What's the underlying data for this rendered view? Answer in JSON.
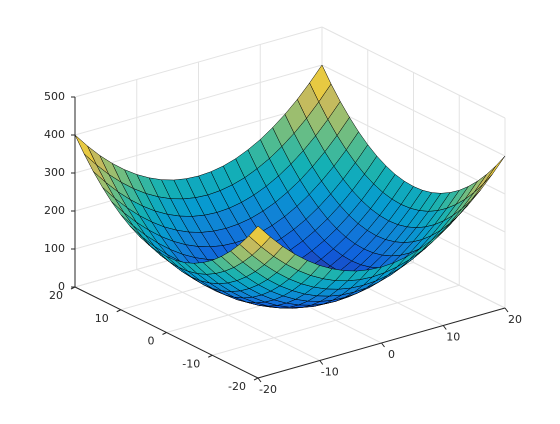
{
  "chart_data": {
    "type": "surface",
    "x": [
      -20,
      -18,
      -16,
      -14,
      -12,
      -10,
      -8,
      -6,
      -4,
      -2,
      0,
      2,
      4,
      6,
      8,
      10,
      12,
      14,
      16,
      18,
      20
    ],
    "y": [
      -20,
      -18,
      -16,
      -14,
      -12,
      -10,
      -8,
      -6,
      -4,
      -2,
      0,
      2,
      4,
      6,
      8,
      10,
      12,
      14,
      16,
      18,
      20
    ],
    "z": [
      [
        400,
        362,
        328,
        298,
        272,
        250,
        232,
        218,
        208,
        202,
        200,
        202,
        208,
        218,
        232,
        250,
        272,
        298,
        328,
        362,
        400
      ],
      [
        362,
        324,
        290,
        260,
        234,
        212,
        194,
        180,
        170,
        164,
        162,
        164,
        170,
        180,
        194,
        212,
        234,
        260,
        290,
        324,
        362
      ],
      [
        328,
        290,
        256,
        226,
        200,
        178,
        160,
        146,
        136,
        130,
        128,
        130,
        136,
        146,
        160,
        178,
        200,
        226,
        256,
        290,
        328
      ],
      [
        298,
        260,
        226,
        196,
        170,
        148,
        130,
        116,
        106,
        100,
        98,
        100,
        106,
        116,
        130,
        148,
        170,
        196,
        226,
        260,
        298
      ],
      [
        272,
        234,
        200,
        170,
        144,
        122,
        104,
        90,
        80,
        74,
        72,
        74,
        80,
        90,
        104,
        122,
        144,
        170,
        200,
        234,
        272
      ],
      [
        250,
        212,
        178,
        148,
        122,
        100,
        82,
        68,
        58,
        52,
        50,
        52,
        58,
        68,
        82,
        100,
        122,
        148,
        178,
        212,
        250
      ],
      [
        232,
        194,
        160,
        130,
        104,
        82,
        64,
        50,
        40,
        34,
        32,
        34,
        40,
        50,
        64,
        82,
        104,
        130,
        160,
        194,
        232
      ],
      [
        218,
        180,
        146,
        116,
        90,
        68,
        50,
        36,
        26,
        20,
        18,
        20,
        26,
        36,
        50,
        68,
        90,
        116,
        146,
        180,
        218
      ],
      [
        208,
        170,
        136,
        106,
        80,
        58,
        40,
        26,
        16,
        10,
        8,
        10,
        16,
        26,
        40,
        58,
        80,
        106,
        136,
        170,
        208
      ],
      [
        202,
        164,
        130,
        100,
        74,
        52,
        34,
        20,
        10,
        4,
        2,
        4,
        10,
        20,
        34,
        52,
        74,
        100,
        130,
        164,
        202
      ],
      [
        200,
        162,
        128,
        98,
        72,
        50,
        32,
        18,
        8,
        2,
        0,
        2,
        8,
        18,
        32,
        50,
        72,
        98,
        128,
        162,
        200
      ],
      [
        202,
        164,
        130,
        100,
        74,
        52,
        34,
        20,
        10,
        4,
        2,
        4,
        10,
        20,
        34,
        52,
        74,
        100,
        130,
        164,
        202
      ],
      [
        208,
        170,
        136,
        106,
        80,
        58,
        40,
        26,
        16,
        10,
        8,
        10,
        16,
        26,
        40,
        58,
        80,
        106,
        136,
        170,
        208
      ],
      [
        218,
        180,
        146,
        116,
        90,
        68,
        50,
        36,
        26,
        20,
        18,
        20,
        26,
        36,
        50,
        68,
        90,
        116,
        146,
        180,
        218
      ],
      [
        232,
        194,
        160,
        130,
        104,
        82,
        64,
        50,
        40,
        34,
        32,
        34,
        40,
        50,
        64,
        82,
        104,
        130,
        160,
        194,
        232
      ],
      [
        250,
        212,
        178,
        148,
        122,
        100,
        82,
        68,
        58,
        52,
        50,
        52,
        58,
        68,
        82,
        100,
        122,
        148,
        178,
        212,
        250
      ],
      [
        272,
        234,
        200,
        170,
        144,
        122,
        104,
        90,
        80,
        74,
        72,
        74,
        80,
        90,
        104,
        122,
        144,
        170,
        200,
        234,
        272
      ],
      [
        298,
        260,
        226,
        196,
        170,
        148,
        130,
        116,
        106,
        100,
        98,
        100,
        106,
        116,
        130,
        148,
        170,
        196,
        226,
        260,
        298
      ],
      [
        328,
        290,
        256,
        226,
        200,
        178,
        160,
        146,
        136,
        130,
        128,
        130,
        136,
        146,
        160,
        178,
        200,
        226,
        256,
        290,
        328
      ],
      [
        362,
        324,
        290,
        260,
        234,
        212,
        194,
        180,
        170,
        164,
        162,
        164,
        170,
        180,
        194,
        212,
        234,
        260,
        290,
        324,
        362
      ],
      [
        400,
        362,
        328,
        298,
        272,
        250,
        232,
        218,
        208,
        202,
        200,
        202,
        208,
        218,
        232,
        250,
        272,
        298,
        328,
        362,
        400
      ]
    ],
    "xlim": [
      -20,
      20
    ],
    "ylim": [
      -20,
      20
    ],
    "zlim": [
      0,
      500
    ],
    "xticks": [
      -20,
      -10,
      0,
      10,
      20
    ],
    "yticks": [
      -20,
      -10,
      0,
      10,
      20
    ],
    "zticks": [
      0,
      100,
      200,
      300,
      400,
      500
    ],
    "grid": true,
    "colormap": [
      "#352a87",
      "#0f5cdd",
      "#127dd8",
      "#079ccf",
      "#15b1b4",
      "#59bd8c",
      "#a5be6b",
      "#e1b952",
      "#f9fb0e"
    ]
  }
}
